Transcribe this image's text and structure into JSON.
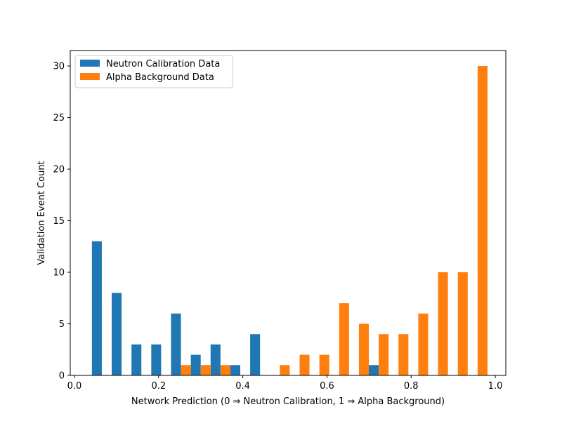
{
  "chart_data": {
    "type": "bar",
    "xlabel": "Network Prediction (0 ⇒ Neutron Calibration, 1 ⇒ Alpha Background)",
    "ylabel": "Validation Event Count",
    "xlim": [
      -0.01,
      1.025
    ],
    "ylim": [
      0,
      31.5
    ],
    "xticks": [
      0.0,
      0.2,
      0.4,
      0.6,
      0.8,
      1.0
    ],
    "xtick_labels": [
      "0.0",
      "0.2",
      "0.4",
      "0.6",
      "0.8",
      "1.0"
    ],
    "yticks": [
      0,
      5,
      10,
      15,
      20,
      25,
      30
    ],
    "ytick_labels": [
      "0",
      "5",
      "10",
      "15",
      "20",
      "25",
      "30"
    ],
    "bin_width": 0.0235,
    "bin_starts": [
      0.0415,
      0.0885,
      0.1355,
      0.1825,
      0.2295,
      0.2765,
      0.3235,
      0.3705,
      0.4175,
      0.4645,
      0.5115,
      0.5585,
      0.6055,
      0.6525,
      0.6995,
      0.7465,
      0.7935,
      0.8405,
      0.8875,
      0.9345
    ],
    "legend_position": "upper-left",
    "series": [
      {
        "name": "Neutron Calibration Data",
        "color": "#1f77b4",
        "offset": 0,
        "values": [
          13,
          8,
          3,
          3,
          6,
          2,
          3,
          1,
          4,
          0,
          0,
          0,
          0,
          0,
          1,
          0,
          0,
          0,
          0,
          0
        ]
      },
      {
        "name": "Alpha Background Data",
        "color": "#ff7f0e",
        "offset": 1,
        "values": [
          0,
          0,
          0,
          0,
          1,
          1,
          1,
          0,
          0,
          1,
          2,
          2,
          7,
          5,
          4,
          4,
          6,
          10,
          10,
          30
        ]
      }
    ]
  }
}
